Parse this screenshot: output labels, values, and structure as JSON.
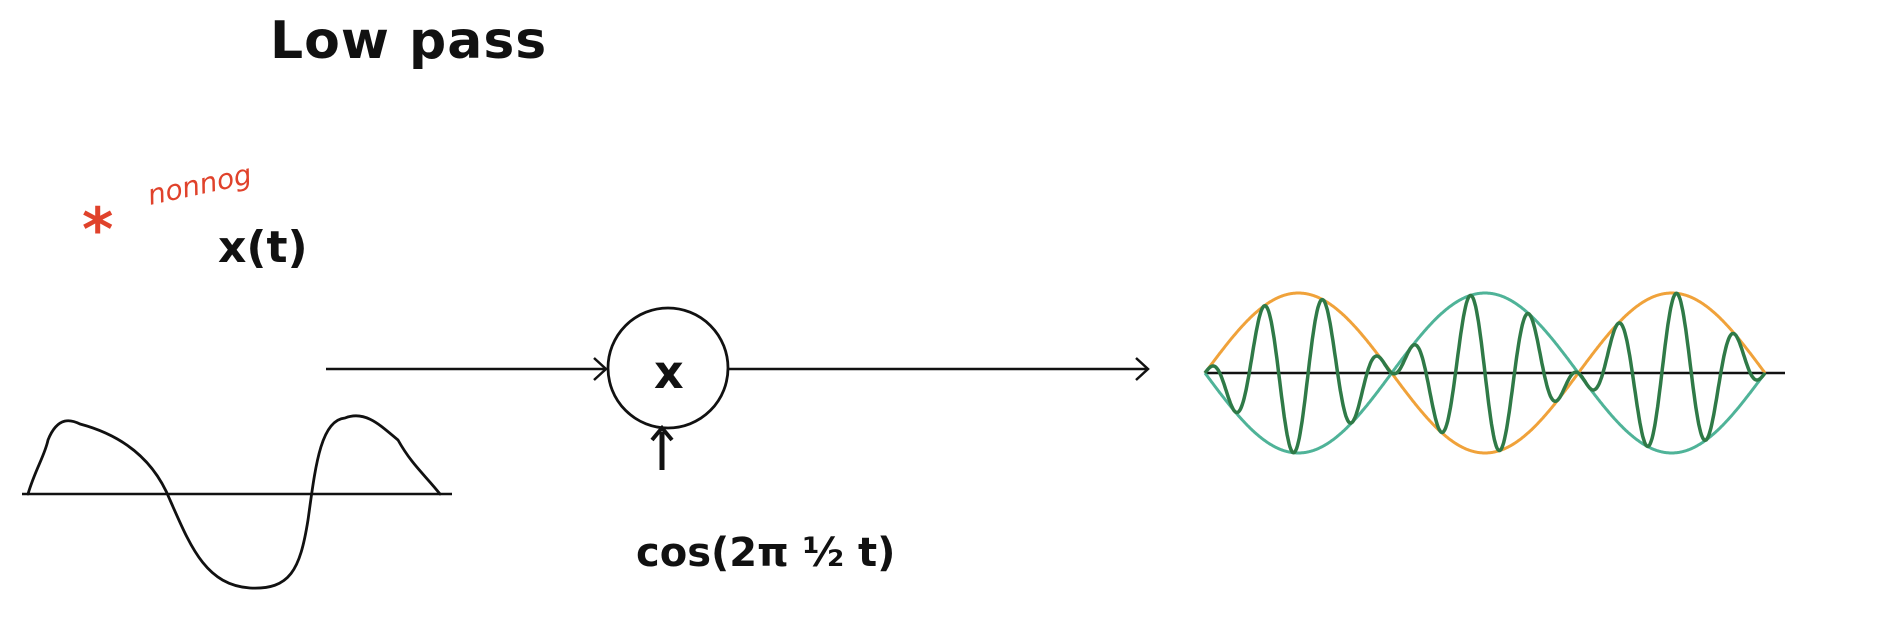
{
  "title": "Low pass",
  "annotation": {
    "star": "*",
    "scribble": "nonnog"
  },
  "input_signal_label": "x(t)",
  "mixer_symbol": "x",
  "carrier_label": "cos(2π ½ t)",
  "colors": {
    "ink": "#111111",
    "annotation": "#e0422b",
    "envelope_orange": "#f0a23a",
    "envelope_teal": "#4fb398",
    "modulated": "#2f7a47"
  }
}
